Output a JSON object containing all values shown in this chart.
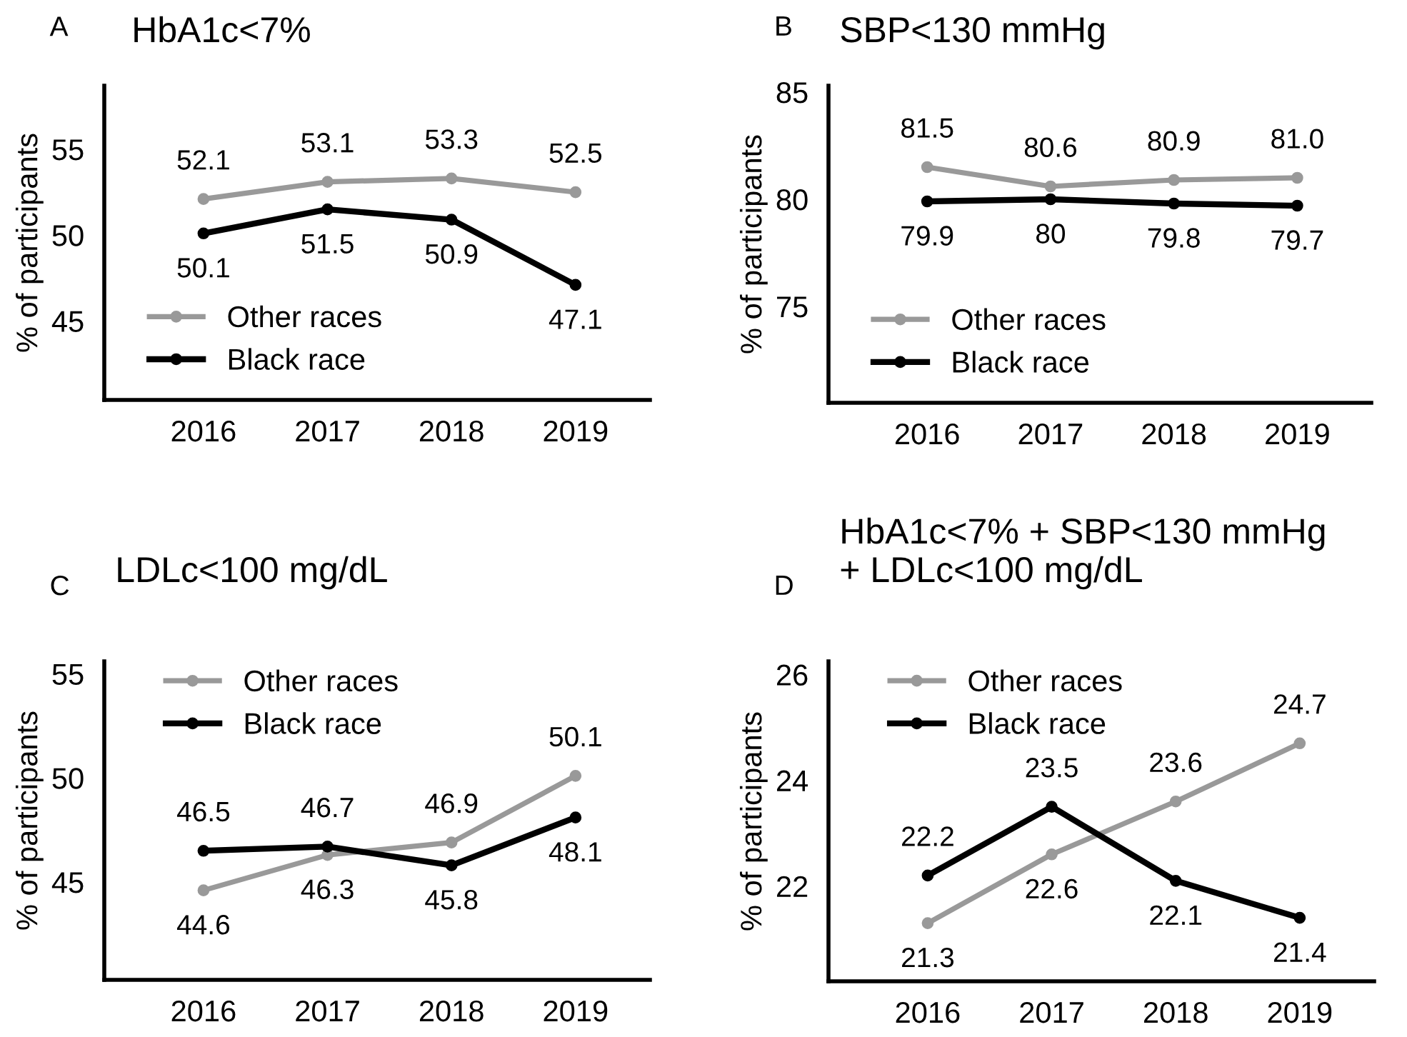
{
  "chart_data": [
    {
      "type": "line",
      "title": "HbA1c<7%",
      "ylabel": "% of participants",
      "annotations": [
        "A"
      ],
      "categories": [
        "2016",
        "2017",
        "2018",
        "2019"
      ],
      "ylim": [
        40.4,
        58.7
      ],
      "yticks": [
        45,
        50,
        55
      ],
      "grid": false,
      "legend": "bottom left",
      "marker": "circle",
      "line_style": "solid",
      "data_labels": true,
      "series": [
        {
          "name": "Other races",
          "color": "#999999",
          "values": [
            52.1,
            53.1,
            53.3,
            52.5
          ]
        },
        {
          "name": "Black race",
          "color": "#000000",
          "values": [
            50.1,
            51.5,
            50.9,
            47.1
          ]
        }
      ]
    },
    {
      "type": "line",
      "title": "SBP<130 mmHg",
      "ylabel": "% of participants",
      "annotations": [
        "B"
      ],
      "categories": [
        "2016",
        "2017",
        "2018",
        "2019"
      ],
      "ylim": [
        70.5,
        85.3
      ],
      "yticks": [
        75,
        80,
        85
      ],
      "grid": false,
      "legend": "bottom left",
      "marker": "circle",
      "line_style": "solid",
      "series": [
        {
          "name": "Other races",
          "color": "#999999",
          "values": [
            81.5,
            80.6,
            80.9,
            81.0
          ],
          "value_labels": [
            "81.5",
            "80.6",
            "80.9",
            "81.0"
          ]
        },
        {
          "name": "Black race",
          "color": "#000000",
          "values": [
            79.9,
            80,
            79.8,
            79.7
          ],
          "value_labels": [
            "79.9",
            "80",
            "79.8",
            "79.7"
          ]
        }
      ]
    },
    {
      "type": "line",
      "title": "LDLc<100 mg/dL",
      "ylabel": "% of participants",
      "annotations": [
        "C"
      ],
      "categories": [
        "2016",
        "2017",
        "2018",
        "2019"
      ],
      "ylim": [
        40.3,
        55.6
      ],
      "yticks": [
        45,
        50,
        55
      ],
      "grid": false,
      "legend": "top left",
      "marker": "circle",
      "line_style": "solid",
      "data_labels": true,
      "series": [
        {
          "name": "Other races",
          "color": "#999999",
          "values": [
            44.6,
            46.3,
            46.9,
            50.1
          ]
        },
        {
          "name": "Black race",
          "color": "#000000",
          "values": [
            46.5,
            46.7,
            45.8,
            48.1
          ]
        }
      ]
    },
    {
      "type": "line",
      "title": "HbA1c<7% + SBP<130 mmHg\n+ LDLc<100 mg/dL",
      "ylabel": "% of participants",
      "annotations": [
        "D"
      ],
      "categories": [
        "2016",
        "2017",
        "2018",
        "2019"
      ],
      "ylim": [
        20.2,
        26.25
      ],
      "yticks": [
        22,
        24,
        26
      ],
      "grid": false,
      "legend": "top left",
      "marker": "circle",
      "line_style": "solid",
      "data_labels": true,
      "series": [
        {
          "name": "Other races",
          "color": "#999999",
          "values": [
            21.3,
            22.6,
            23.6,
            24.7
          ]
        },
        {
          "name": "Black race",
          "color": "#000000",
          "values": [
            22.2,
            23.5,
            22.1,
            21.4
          ]
        }
      ]
    }
  ]
}
